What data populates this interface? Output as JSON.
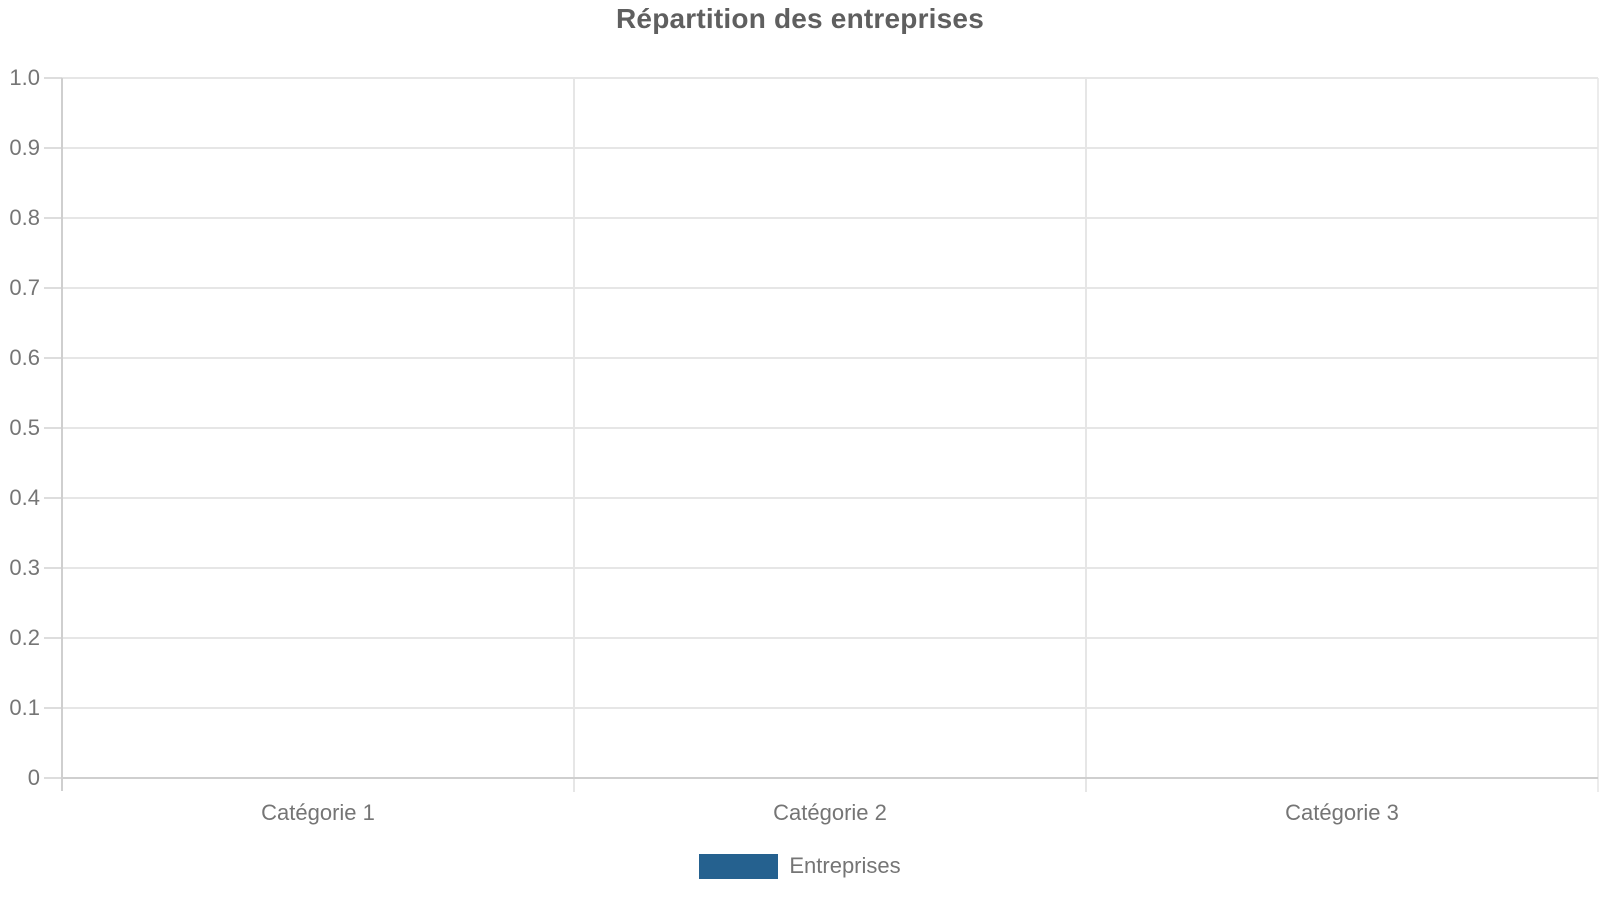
{
  "chart_data": {
    "type": "bar",
    "title": "Répartition des entreprises",
    "categories": [
      "Catégorie 1",
      "Catégorie 2",
      "Catégorie 3"
    ],
    "series": [
      {
        "name": "Entreprises",
        "color": "#25618F",
        "values": [
          0,
          0,
          0
        ]
      }
    ],
    "xlabel": "",
    "ylabel": "",
    "ylim": [
      0,
      1
    ],
    "yticks": [
      0,
      0.1,
      0.2,
      0.3,
      0.4,
      0.5,
      0.6,
      0.7,
      0.8,
      0.9,
      1
    ],
    "ytick_labels": [
      "0",
      "0.1",
      "0.2",
      "0.3",
      "0.4",
      "0.5",
      "0.6",
      "0.7",
      "0.8",
      "0.9",
      "1.0"
    ],
    "grid": true,
    "legend_position": "bottom",
    "colors": {
      "grid": "#e6e6e6",
      "axis": "#cfcfcf",
      "tick": "#dddddd",
      "title": "#5f5f5f",
      "label": "#757575",
      "accent": "#25618F"
    }
  }
}
